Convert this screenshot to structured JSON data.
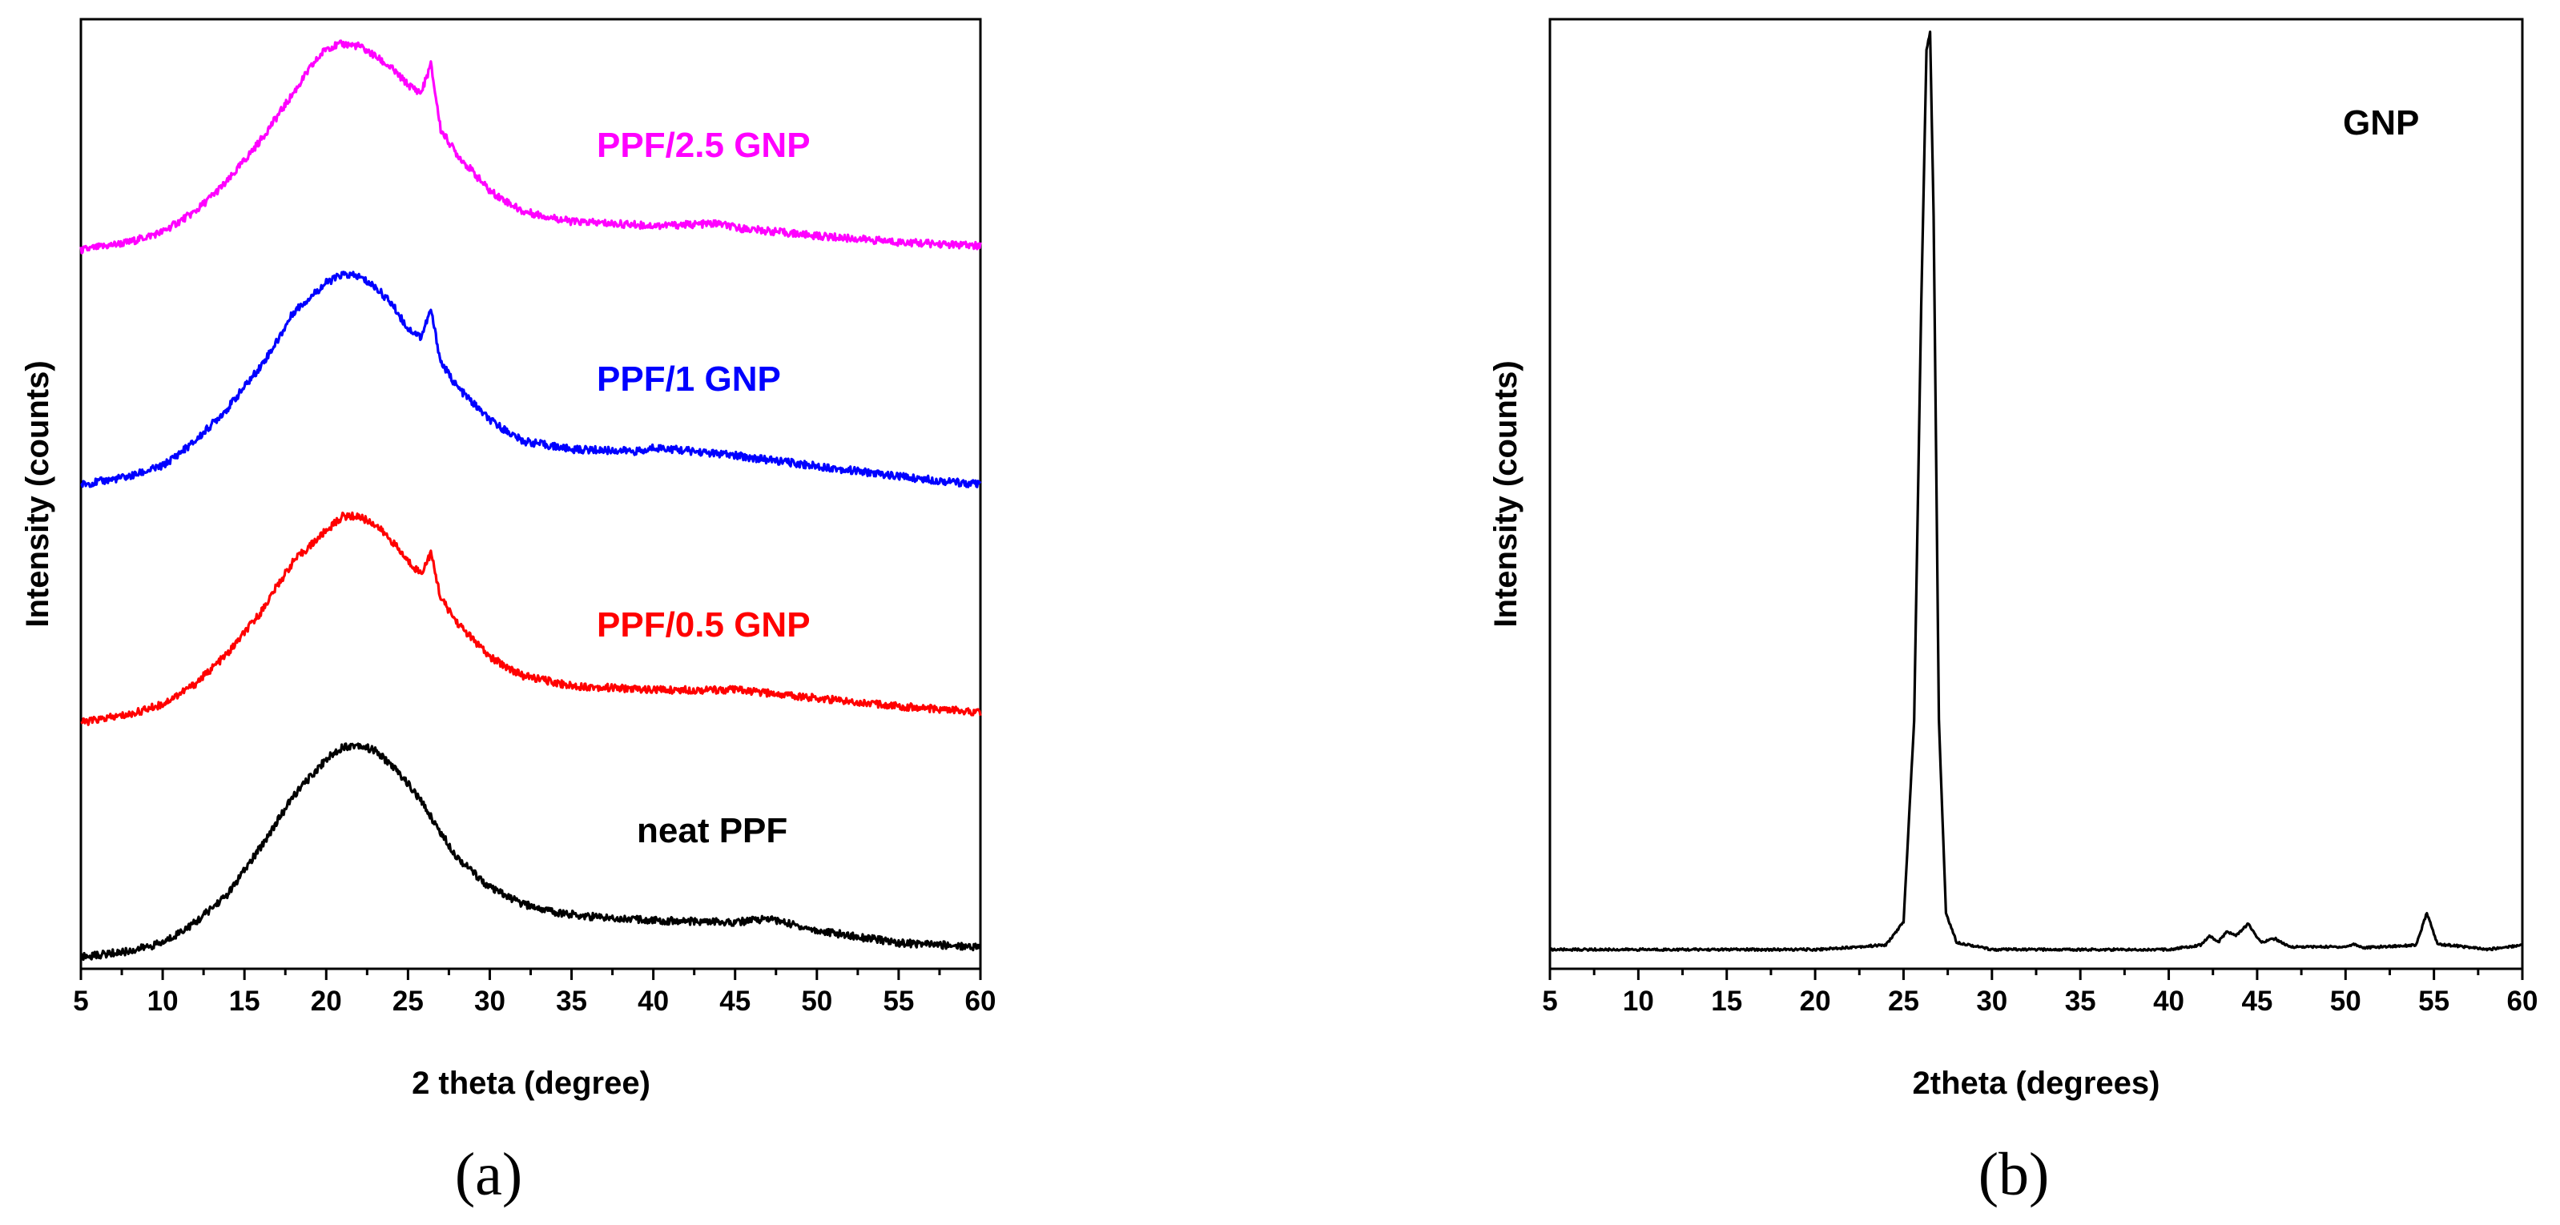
{
  "chart_data": [
    {
      "type": "line",
      "panel_label": "(a)",
      "xlabel": "2 theta (degree)",
      "ylabel": "Intensity (counts)",
      "xlim": [
        5,
        60
      ],
      "xticks": [
        "5",
        "10",
        "15",
        "20",
        "25",
        "30",
        "35",
        "40",
        "45",
        "50",
        "55",
        "60"
      ],
      "y_tick_labels": false,
      "series": [
        {
          "name": "neat PPF",
          "color": "#000000",
          "x": [
            5,
            8,
            10,
            12,
            14,
            16,
            18,
            20,
            21,
            22,
            23,
            24,
            25,
            26,
            27,
            28,
            30,
            32,
            34,
            36,
            40,
            45,
            47,
            50,
            55,
            60
          ],
          "y": [
            0.01,
            0.04,
            0.08,
            0.18,
            0.32,
            0.55,
            0.8,
            0.98,
            1.04,
            1.05,
            1.02,
            0.95,
            0.86,
            0.75,
            0.62,
            0.5,
            0.35,
            0.27,
            0.23,
            0.21,
            0.19,
            0.18,
            0.2,
            0.14,
            0.08,
            0.06
          ]
        },
        {
          "name": "PPF/0.5 GNP",
          "color": "#ff0000",
          "x": [
            5,
            8,
            10,
            12,
            14,
            16,
            17,
            18,
            20,
            21,
            22,
            23,
            24,
            25,
            25.8,
            26.4,
            27,
            28,
            30,
            32,
            35,
            40,
            45,
            50,
            55,
            60
          ],
          "y": [
            0.01,
            0.05,
            0.1,
            0.2,
            0.35,
            0.55,
            0.68,
            0.8,
            0.95,
            1.02,
            1.02,
            0.98,
            0.9,
            0.8,
            0.74,
            0.84,
            0.62,
            0.5,
            0.33,
            0.24,
            0.19,
            0.17,
            0.17,
            0.13,
            0.09,
            0.06
          ]
        },
        {
          "name": "PPF/1 GNP",
          "color": "#0000ff",
          "x": [
            5,
            8,
            10,
            12,
            14,
            16,
            17,
            18,
            20,
            21,
            22,
            23,
            24,
            25,
            25.8,
            26.4,
            27,
            28,
            30,
            32,
            35,
            39.5,
            40,
            45,
            50,
            55,
            60
          ],
          "y": [
            0.01,
            0.05,
            0.1,
            0.22,
            0.38,
            0.58,
            0.7,
            0.84,
            0.98,
            1.02,
            1.01,
            0.96,
            0.88,
            0.76,
            0.72,
            0.85,
            0.6,
            0.48,
            0.32,
            0.22,
            0.18,
            0.17,
            0.19,
            0.15,
            0.1,
            0.05,
            0.01
          ]
        },
        {
          "name": "PPF/2.5 GNP",
          "color": "#ff00ff",
          "x": [
            5,
            8,
            10,
            12,
            14,
            16,
            18,
            19,
            20,
            21,
            22,
            23,
            24,
            25,
            25.8,
            26.4,
            27,
            28,
            30,
            32,
            35,
            40,
            44,
            45,
            50,
            55,
            60
          ],
          "y": [
            0.01,
            0.05,
            0.1,
            0.2,
            0.35,
            0.55,
            0.78,
            0.9,
            1.0,
            1.02,
            1.01,
            0.96,
            0.9,
            0.82,
            0.78,
            0.92,
            0.6,
            0.48,
            0.3,
            0.2,
            0.15,
            0.13,
            0.14,
            0.12,
            0.08,
            0.05,
            0.03
          ]
        }
      ]
    },
    {
      "type": "line",
      "panel_label": "(b)",
      "xlabel": "2theta (degrees)",
      "ylabel": "Intensity (counts)",
      "xlim": [
        5,
        60
      ],
      "xticks": [
        "5",
        "10",
        "15",
        "20",
        "25",
        "30",
        "35",
        "40",
        "45",
        "50",
        "55",
        "60"
      ],
      "y_tick_labels": false,
      "annotation": "GNP",
      "series": [
        {
          "name": "GNP",
          "color": "#000000",
          "x": [
            5,
            20,
            24,
            25,
            25.6,
            26,
            26.3,
            26.5,
            26.7,
            27,
            27.4,
            28,
            30,
            40,
            41.8,
            42.3,
            42.8,
            43.3,
            43.8,
            44.5,
            45.2,
            46.0,
            46.8,
            50,
            50.5,
            51,
            54,
            54.6,
            55.2,
            56.3,
            58,
            60
          ],
          "y": [
            0.0,
            0.0,
            0.005,
            0.03,
            0.25,
            0.7,
            0.98,
            1.0,
            0.8,
            0.25,
            0.04,
            0.008,
            0.0,
            0.0,
            0.005,
            0.015,
            0.008,
            0.02,
            0.015,
            0.028,
            0.008,
            0.012,
            0.003,
            0.003,
            0.006,
            0.002,
            0.005,
            0.04,
            0.006,
            0.004,
            0.0,
            0.005
          ]
        }
      ]
    }
  ]
}
